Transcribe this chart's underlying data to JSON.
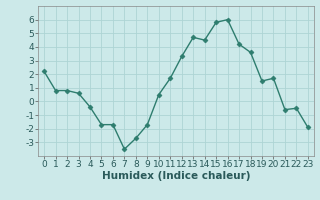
{
  "x": [
    0,
    1,
    2,
    3,
    4,
    5,
    6,
    7,
    8,
    9,
    10,
    11,
    12,
    13,
    14,
    15,
    16,
    17,
    18,
    19,
    20,
    21,
    22,
    23
  ],
  "y": [
    2.2,
    0.8,
    0.8,
    0.6,
    -0.4,
    -1.7,
    -1.7,
    -3.5,
    -2.7,
    -1.7,
    0.5,
    1.7,
    3.3,
    4.7,
    4.5,
    5.8,
    6.0,
    4.2,
    3.6,
    1.5,
    1.7,
    -0.6,
    -0.5,
    -1.9
  ],
  "line_color": "#2e7d6e",
  "marker": "D",
  "marker_size": 2.5,
  "line_width": 1.0,
  "xlabel": "Humidex (Indice chaleur)",
  "xlim": [
    -0.5,
    23.5
  ],
  "ylim": [
    -4,
    7
  ],
  "yticks": [
    -3,
    -2,
    -1,
    0,
    1,
    2,
    3,
    4,
    5,
    6
  ],
  "xticks": [
    0,
    1,
    2,
    3,
    4,
    5,
    6,
    7,
    8,
    9,
    10,
    11,
    12,
    13,
    14,
    15,
    16,
    17,
    18,
    19,
    20,
    21,
    22,
    23
  ],
  "background_color": "#cce9e9",
  "grid_color": "#aed4d4",
  "xlabel_fontsize": 7.5,
  "tick_fontsize": 6.5
}
